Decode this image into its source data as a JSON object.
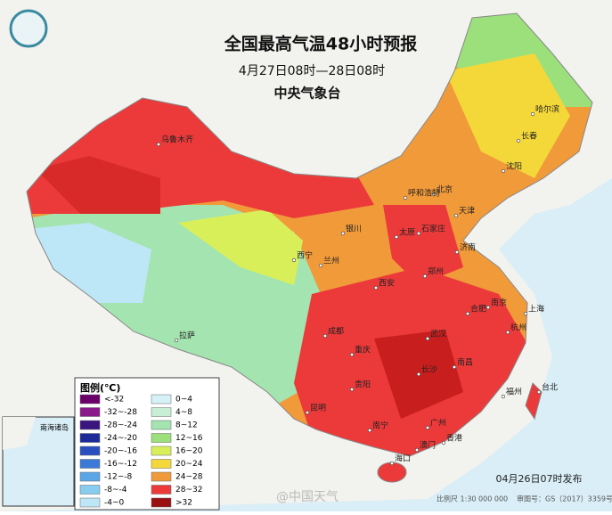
{
  "header": {
    "title": "全国最高气温48小时预报",
    "subtitle": "4月27日08时—28日08时",
    "issuer": "中央气象台"
  },
  "legend": {
    "title": "图例(℃)",
    "items": [
      {
        "label": "<-32",
        "color": "#6b006b"
      },
      {
        "label": "-32~-28",
        "color": "#8a1a8a"
      },
      {
        "label": "-28~-24",
        "color": "#3a1580"
      },
      {
        "label": "-24~-20",
        "color": "#1d2a9a"
      },
      {
        "label": "-20~-16",
        "color": "#2a4ec0"
      },
      {
        "label": "-16~-12",
        "color": "#3d7ad8"
      },
      {
        "label": "-12~-8",
        "color": "#5aa6e6"
      },
      {
        "label": "-8~-4",
        "color": "#88cdf0"
      },
      {
        "label": "-4~0",
        "color": "#bde6f6"
      },
      {
        "label": "0~4",
        "color": "#d6f2f8"
      },
      {
        "label": "4~8",
        "color": "#c8efd6"
      },
      {
        "label": "8~12",
        "color": "#a4e4b0"
      },
      {
        "label": "12~16",
        "color": "#9be07a"
      },
      {
        "label": "16~20",
        "color": "#d9ef5a"
      },
      {
        "label": "20~24",
        "color": "#f4d83a"
      },
      {
        "label": "24~28",
        "color": "#f19a3a"
      },
      {
        "label": "28~32",
        "color": "#ec3a3a"
      },
      {
        "label": ">32",
        "color": "#9a1010"
      }
    ]
  },
  "cities": [
    "乌鲁木齐",
    "哈尔滨",
    "长春",
    "沈阳",
    "北京",
    "天津",
    "呼和浩特",
    "银川",
    "石家庄",
    "太原",
    "济南",
    "西宁",
    "兰州",
    "西安",
    "郑州",
    "南京",
    "合肥",
    "上海",
    "杭州",
    "武汉",
    "成都",
    "重庆",
    "长沙",
    "南昌",
    "福州",
    "拉萨",
    "贵阳",
    "昆明",
    "南宁",
    "广州",
    "香港",
    "澳门",
    "海口",
    "台北"
  ],
  "inset": {
    "label": "南海诸岛"
  },
  "footer": {
    "published": "04月26日07时发布",
    "scale": "比例尺 1:30 000 000",
    "approval": "审图号：GS（2017）3359号",
    "watermark": "@中国天气"
  }
}
